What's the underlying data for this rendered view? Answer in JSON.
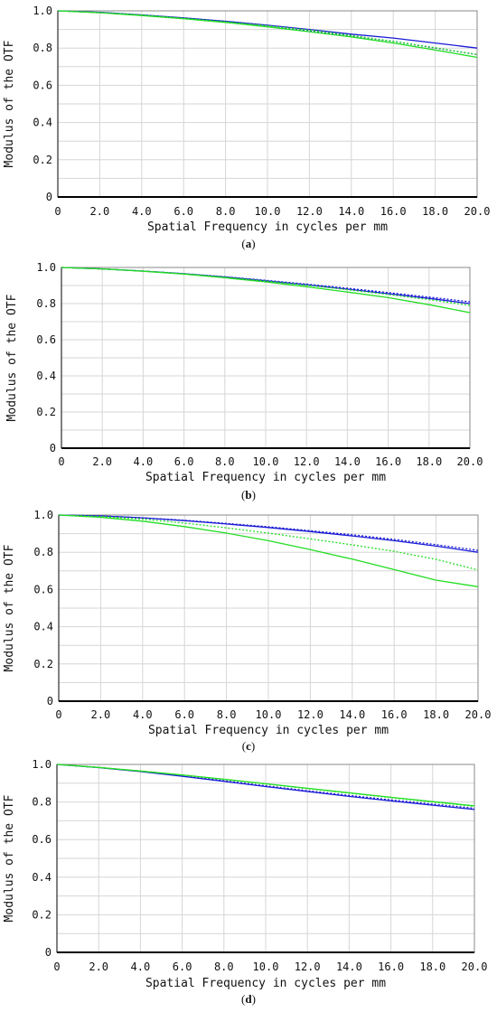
{
  "chart_data": [
    {
      "type": "line",
      "caption_letter": "a",
      "xlabel": "Spatial Frequency in cycles per mm",
      "ylabel": "Modulus of the OTF",
      "xlim": [
        0,
        20
      ],
      "ylim": [
        0,
        1
      ],
      "xticks": [
        "0",
        "2.0",
        "4.0",
        "6.0",
        "8.0",
        "10.0",
        "12.0",
        "14.0",
        "16.0",
        "18.0",
        "20.0"
      ],
      "yticks": [
        "0",
        "0.2",
        "0.4",
        "0.6",
        "0.8",
        "1.0"
      ],
      "grid": true,
      "series": [
        {
          "color": "#1a1ad6",
          "style": "solid",
          "x": [
            0,
            2,
            4,
            6,
            8,
            10,
            12,
            14,
            16,
            18,
            20
          ],
          "y": [
            1.0,
            0.992,
            0.978,
            0.962,
            0.944,
            0.923,
            0.9,
            0.875,
            0.854,
            0.827,
            0.8
          ]
        },
        {
          "color": "#1a1ad6",
          "style": "dotted",
          "x": [
            0,
            2,
            4,
            6,
            8,
            10,
            12,
            14,
            16,
            18,
            20
          ],
          "y": [
            1.0,
            0.991,
            0.977,
            0.96,
            0.941,
            0.918,
            0.893,
            0.865,
            0.836,
            0.8,
            0.765
          ]
        },
        {
          "color": "#22dd22",
          "style": "solid",
          "x": [
            0,
            2,
            4,
            6,
            8,
            10,
            12,
            14,
            16,
            18,
            20
          ],
          "y": [
            1.0,
            0.99,
            0.975,
            0.958,
            0.938,
            0.914,
            0.888,
            0.86,
            0.827,
            0.79,
            0.75
          ]
        },
        {
          "color": "#22dd22",
          "style": "dotted",
          "x": [
            0,
            2,
            4,
            6,
            8,
            10,
            12,
            14,
            16,
            18,
            20
          ],
          "y": [
            1.0,
            0.991,
            0.977,
            0.96,
            0.941,
            0.92,
            0.897,
            0.868,
            0.836,
            0.802,
            0.765
          ]
        }
      ]
    },
    {
      "type": "line",
      "caption_letter": "b",
      "xlabel": "Spatial Frequency in cycles per mm",
      "ylabel": "Modulus of the OTF",
      "xlim": [
        0,
        20
      ],
      "ylim": [
        0,
        1
      ],
      "xticks": [
        "0",
        "2.0",
        "4.0",
        "6.0",
        "8.0",
        "10.0",
        "12.0",
        "14.0",
        "16.0",
        "18.0",
        "20.0"
      ],
      "yticks": [
        "0",
        "0.2",
        "0.4",
        "0.6",
        "0.8",
        "1.0"
      ],
      "grid": true,
      "series": [
        {
          "color": "#1a1ad6",
          "style": "solid",
          "x": [
            0,
            2,
            4,
            6,
            8,
            10,
            12,
            14,
            16,
            18,
            20
          ],
          "y": [
            1.0,
            0.992,
            0.98,
            0.965,
            0.947,
            0.926,
            0.904,
            0.88,
            0.855,
            0.829,
            0.8
          ]
        },
        {
          "color": "#1a1ad6",
          "style": "dotted",
          "x": [
            0,
            2,
            4,
            6,
            8,
            10,
            12,
            14,
            16,
            18,
            20
          ],
          "y": [
            1.0,
            0.992,
            0.98,
            0.966,
            0.949,
            0.929,
            0.908,
            0.885,
            0.861,
            0.836,
            0.81
          ]
        },
        {
          "color": "#22dd22",
          "style": "solid",
          "x": [
            0,
            2,
            4,
            6,
            8,
            10,
            12,
            14,
            16,
            18,
            20
          ],
          "y": [
            1.0,
            0.992,
            0.979,
            0.963,
            0.943,
            0.92,
            0.893,
            0.864,
            0.833,
            0.794,
            0.75
          ]
        },
        {
          "color": "#22dd22",
          "style": "dotted",
          "x": [
            0,
            2,
            4,
            6,
            8,
            10,
            12,
            14,
            16,
            18,
            20
          ],
          "y": [
            1.0,
            0.992,
            0.98,
            0.965,
            0.946,
            0.925,
            0.902,
            0.877,
            0.85,
            0.822,
            0.79
          ]
        }
      ]
    },
    {
      "type": "line",
      "caption_letter": "c",
      "xlabel": "Spatial Frequency in cycles per mm",
      "ylabel": "Modulus of the OTF",
      "xlim": [
        0,
        20
      ],
      "ylim": [
        0,
        1
      ],
      "xticks": [
        "0",
        "2.0",
        "4.0",
        "6.0",
        "8.0",
        "10.0",
        "12.0",
        "14.0",
        "16.0",
        "18.0",
        "20.0"
      ],
      "yticks": [
        "0",
        "0.2",
        "0.4",
        "0.6",
        "0.8",
        "1.0"
      ],
      "grid": true,
      "series": [
        {
          "color": "#1a1ad6",
          "style": "solid",
          "x": [
            0,
            2,
            4,
            6,
            8,
            10,
            12,
            14,
            16,
            18,
            20
          ],
          "y": [
            1.0,
            0.995,
            0.985,
            0.97,
            0.952,
            0.933,
            0.911,
            0.888,
            0.862,
            0.833,
            0.8
          ]
        },
        {
          "color": "#1a1ad6",
          "style": "dotted",
          "x": [
            0,
            2,
            4,
            6,
            8,
            10,
            12,
            14,
            16,
            18,
            20
          ],
          "y": [
            1.0,
            0.995,
            0.985,
            0.972,
            0.955,
            0.937,
            0.916,
            0.894,
            0.869,
            0.841,
            0.81
          ]
        },
        {
          "color": "#22dd22",
          "style": "solid",
          "x": [
            0,
            2,
            4,
            6,
            8,
            10,
            12,
            14,
            16,
            18,
            20
          ],
          "y": [
            1.0,
            0.988,
            0.967,
            0.938,
            0.903,
            0.862,
            0.814,
            0.763,
            0.707,
            0.65,
            0.615
          ]
        },
        {
          "color": "#22dd22",
          "style": "dotted",
          "x": [
            0,
            2,
            4,
            6,
            8,
            10,
            12,
            14,
            16,
            18,
            20
          ],
          "y": [
            1.0,
            0.992,
            0.978,
            0.957,
            0.931,
            0.903,
            0.872,
            0.84,
            0.805,
            0.762,
            0.705
          ]
        }
      ]
    },
    {
      "type": "line",
      "caption_letter": "d",
      "xlabel": "Spatial Frequency in cycles per mm",
      "ylabel": "Modulus of the OTF",
      "xlim": [
        0,
        20
      ],
      "ylim": [
        0,
        1
      ],
      "xticks": [
        "0",
        "2.0",
        "4.0",
        "6.0",
        "8.0",
        "10.0",
        "12.0",
        "14.0",
        "16.0",
        "18.0",
        "20.0"
      ],
      "yticks": [
        "0",
        "0.2",
        "0.4",
        "0.6",
        "0.8",
        "1.0"
      ],
      "grid": true,
      "series": [
        {
          "color": "#1a1ad6",
          "style": "solid",
          "x": [
            0,
            2,
            4,
            6,
            8,
            10,
            12,
            14,
            16,
            18,
            20
          ],
          "y": [
            1.0,
            0.983,
            0.962,
            0.937,
            0.91,
            0.882,
            0.856,
            0.83,
            0.806,
            0.783,
            0.76
          ]
        },
        {
          "color": "#1a1ad6",
          "style": "dotted",
          "x": [
            0,
            2,
            4,
            6,
            8,
            10,
            12,
            14,
            16,
            18,
            20
          ],
          "y": [
            1.0,
            0.983,
            0.963,
            0.939,
            0.913,
            0.886,
            0.86,
            0.835,
            0.811,
            0.789,
            0.767
          ]
        },
        {
          "color": "#22dd22",
          "style": "solid",
          "x": [
            0,
            2,
            4,
            6,
            8,
            10,
            12,
            14,
            16,
            18,
            20
          ],
          "y": [
            1.0,
            0.984,
            0.965,
            0.944,
            0.921,
            0.897,
            0.873,
            0.849,
            0.825,
            0.802,
            0.78
          ]
        },
        {
          "color": "#22dd22",
          "style": "dotted",
          "x": [
            0,
            2,
            4,
            6,
            8,
            10,
            12,
            14,
            16,
            18,
            20
          ],
          "y": [
            1.0,
            0.984,
            0.965,
            0.943,
            0.92,
            0.896,
            0.871,
            0.847,
            0.823,
            0.8,
            0.777
          ]
        }
      ]
    }
  ]
}
